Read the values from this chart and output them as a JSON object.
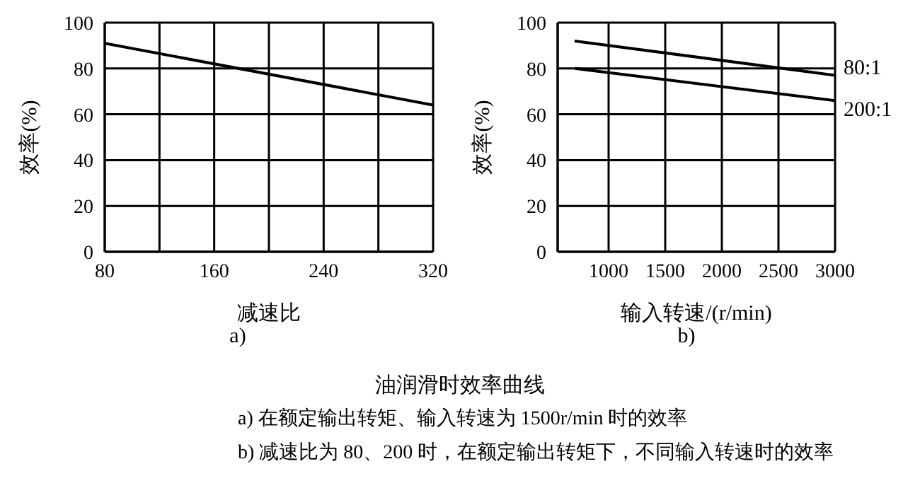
{
  "chart_data": [
    {
      "type": "line",
      "xlabel": "减速比",
      "ylabel": "效率(%)",
      "x": [
        80,
        320
      ],
      "series": [
        {
          "color": "#000000",
          "values": [
            91,
            64
          ]
        }
      ],
      "xlim": [
        80,
        320
      ],
      "xticks": [
        80,
        {
          "value": 120,
          "label": null
        },
        160,
        {
          "value": 200,
          "label": null
        },
        240,
        {
          "value": 280,
          "label": null
        },
        320
      ],
      "ylim": [
        0,
        100
      ],
      "yticks": [
        0,
        20,
        40,
        60,
        80,
        100
      ],
      "grid": true,
      "marker": "none",
      "line_style": "solid",
      "annotations": [
        "a)"
      ]
    },
    {
      "type": "line",
      "xlabel": "输入转速/(r/min)",
      "ylabel": "效率(%)",
      "x": [
        700,
        3000
      ],
      "series": [
        {
          "name": "80:1",
          "color": "#000000",
          "values": [
            92,
            77
          ]
        },
        {
          "name": "200:1",
          "color": "#000000",
          "values": [
            80,
            66
          ]
        }
      ],
      "xlim": [
        550,
        3000
      ],
      "xticks": [
        1000,
        1500,
        2000,
        2500,
        3000
      ],
      "ylim": [
        0,
        100
      ],
      "yticks": [
        0,
        20,
        40,
        60,
        80,
        100
      ],
      "grid": true,
      "marker": "none",
      "line_style": "solid",
      "title": "油润滑时效率曲线",
      "annotations": [
        "b)",
        "a) 在额定输出转矩、输入转速为 1500r/min 时的效率",
        "b) 减速比为 80、200 时，在额定输出转矩下，不同输入转速时的效率"
      ]
    }
  ]
}
